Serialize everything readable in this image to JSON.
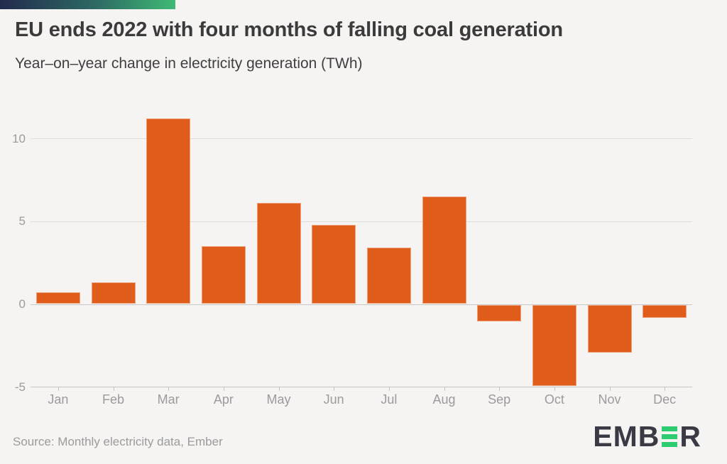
{
  "header": {
    "title": "EU ends 2022 with four months of falling coal generation",
    "subtitle": "Year–on–year change in electricity generation (TWh)"
  },
  "chart_data": {
    "type": "bar",
    "title": "EU ends 2022 with four months of falling coal generation",
    "subtitle": "Year–on–year change in electricity generation (TWh)",
    "ylabel": "",
    "xlabel": "",
    "unit": "TWh",
    "categories": [
      "Jan",
      "Feb",
      "Mar",
      "Apr",
      "May",
      "Jun",
      "Jul",
      "Aug",
      "Sep",
      "Oct",
      "Nov",
      "Dec"
    ],
    "values": [
      0.7,
      1.3,
      11.2,
      3.5,
      6.1,
      4.8,
      3.4,
      6.5,
      -1.0,
      -4.9,
      -2.9,
      -0.8
    ],
    "ylim": [
      -5,
      11.5
    ],
    "yticks": [
      10,
      5,
      0,
      -5
    ],
    "ytick_labels": [
      "10",
      "5",
      "0",
      "-5"
    ],
    "grid": true,
    "legend_position": "none",
    "bar_color": "#df5c1a"
  },
  "footer": {
    "source": "Source: Monthly electricity data, Ember",
    "logo_left": "EMB",
    "logo_right": "R",
    "logo_name": "EMBER"
  },
  "colors": {
    "background": "#f5f4f2",
    "bar": "#df5c1a",
    "gradient_start": "#222b4d",
    "gradient_end": "#3fba75",
    "logo_green": "#2ecc71",
    "logo_dark": "#3a3a44",
    "axis_text": "#9b9b9b",
    "title_text": "#3b3b3b"
  }
}
